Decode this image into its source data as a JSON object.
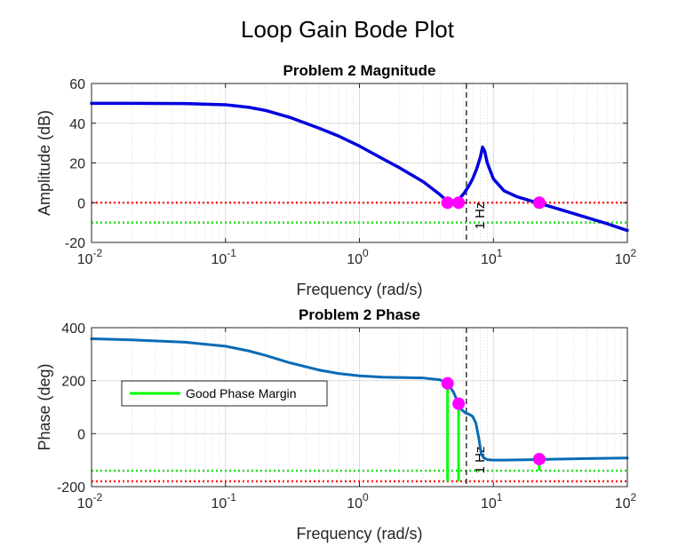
{
  "figure_title": "Loop Gain Bode Plot",
  "colors": {
    "magnitude_line": "#0000e0",
    "phase_line": "#0a6bb5",
    "marker": "#ff00ff",
    "zero_ref": "#ff2020",
    "margin_ref": "#22dd22",
    "margin_stem": "#00ff00",
    "vline": "#333333",
    "grid": "#dcdcdc"
  },
  "chart_data": [
    {
      "type": "line",
      "title": "Problem 2 Magnitude",
      "xlabel": "Frequency (rad/s)",
      "ylabel": "Amplitude (dB)",
      "x_scale": "log",
      "xlim": [
        0.01,
        100
      ],
      "ylim": [
        -20,
        60
      ],
      "x_ticks": [
        {
          "base": "10",
          "exp": "-2"
        },
        {
          "base": "10",
          "exp": "-1"
        },
        {
          "base": "10",
          "exp": "0"
        },
        {
          "base": "10",
          "exp": "1"
        },
        {
          "base": "10",
          "exp": "2"
        }
      ],
      "y_ticks": [
        "-20",
        "0",
        "20",
        "40",
        "60"
      ],
      "grid": true,
      "series": [
        {
          "x": [
            0.01,
            0.02,
            0.05,
            0.1,
            0.15,
            0.2,
            0.3,
            0.5,
            0.7,
            1,
            1.5,
            2,
            3,
            4,
            4.5,
            5,
            5.5,
            6,
            6.5,
            7,
            7.5,
            8,
            8.3,
            8.6,
            9,
            10,
            12,
            15,
            20,
            30,
            50,
            70,
            100
          ],
          "y": [
            50,
            50,
            49.9,
            49.3,
            48,
            46.4,
            43,
            37.5,
            33.5,
            28.5,
            22,
            17.5,
            10.5,
            4,
            1,
            0,
            1.5,
            4.5,
            8,
            12,
            17,
            23,
            28,
            26,
            20,
            12,
            6,
            3,
            0.5,
            -3,
            -7.5,
            -10.5,
            -14
          ]
        }
      ],
      "reference_lines": [
        {
          "y": 0,
          "style": "dotted",
          "color_key": "zero_ref"
        },
        {
          "y": -10,
          "style": "dotted",
          "color_key": "margin_ref"
        }
      ],
      "vline": {
        "x": 6.2832,
        "label": "1 Hz"
      },
      "markers": [
        {
          "x": 4.55,
          "y": 0
        },
        {
          "x": 5.5,
          "y": 0
        },
        {
          "x": 22,
          "y": 0
        }
      ]
    },
    {
      "type": "line",
      "title": "Problem 2 Phase",
      "xlabel": "Frequency (rad/s)",
      "ylabel": "Phase (deg)",
      "x_scale": "log",
      "xlim": [
        0.01,
        100
      ],
      "ylim": [
        -200,
        400
      ],
      "x_ticks": [
        {
          "base": "10",
          "exp": "-2"
        },
        {
          "base": "10",
          "exp": "-1"
        },
        {
          "base": "10",
          "exp": "0"
        },
        {
          "base": "10",
          "exp": "1"
        },
        {
          "base": "10",
          "exp": "2"
        }
      ],
      "y_ticks": [
        "-200",
        "0",
        "200",
        "400"
      ],
      "grid": true,
      "legend": {
        "placement": "middle-left",
        "entries": [
          "Good Phase Margin"
        ]
      },
      "series": [
        {
          "x": [
            0.01,
            0.02,
            0.05,
            0.1,
            0.15,
            0.2,
            0.3,
            0.5,
            0.7,
            1,
            1.5,
            2,
            3,
            4,
            4.5,
            5,
            5.5,
            5.8,
            6.2,
            6.6,
            7,
            7.4,
            7.8,
            8.1,
            8.5,
            9,
            10,
            12,
            15,
            20,
            30,
            50,
            100
          ],
          "y": [
            358,
            354,
            345,
            330,
            312,
            295,
            268,
            240,
            227,
            218,
            213,
            212,
            210,
            203,
            190,
            160,
            113,
            90,
            78,
            73,
            65,
            40,
            -20,
            -75,
            -92,
            -98,
            -100,
            -100,
            -99,
            -98,
            -96,
            -94,
            -92
          ]
        }
      ],
      "reference_lines": [
        {
          "y": -180,
          "style": "dotted",
          "color_key": "zero_ref"
        },
        {
          "y": -140,
          "style": "dotted",
          "color_key": "margin_ref"
        }
      ],
      "vline": {
        "x": 6.2832,
        "label": "1 Hz"
      },
      "markers": [
        {
          "x": 4.55,
          "y": 190
        },
        {
          "x": 5.5,
          "y": 113
        },
        {
          "x": 22,
          "y": -96
        }
      ],
      "stems": [
        {
          "x": 4.55,
          "y0": -180,
          "y1": 190
        },
        {
          "x": 5.5,
          "y0": -180,
          "y1": 113
        },
        {
          "x": 22,
          "y0": -140,
          "y1": -96
        }
      ]
    }
  ]
}
